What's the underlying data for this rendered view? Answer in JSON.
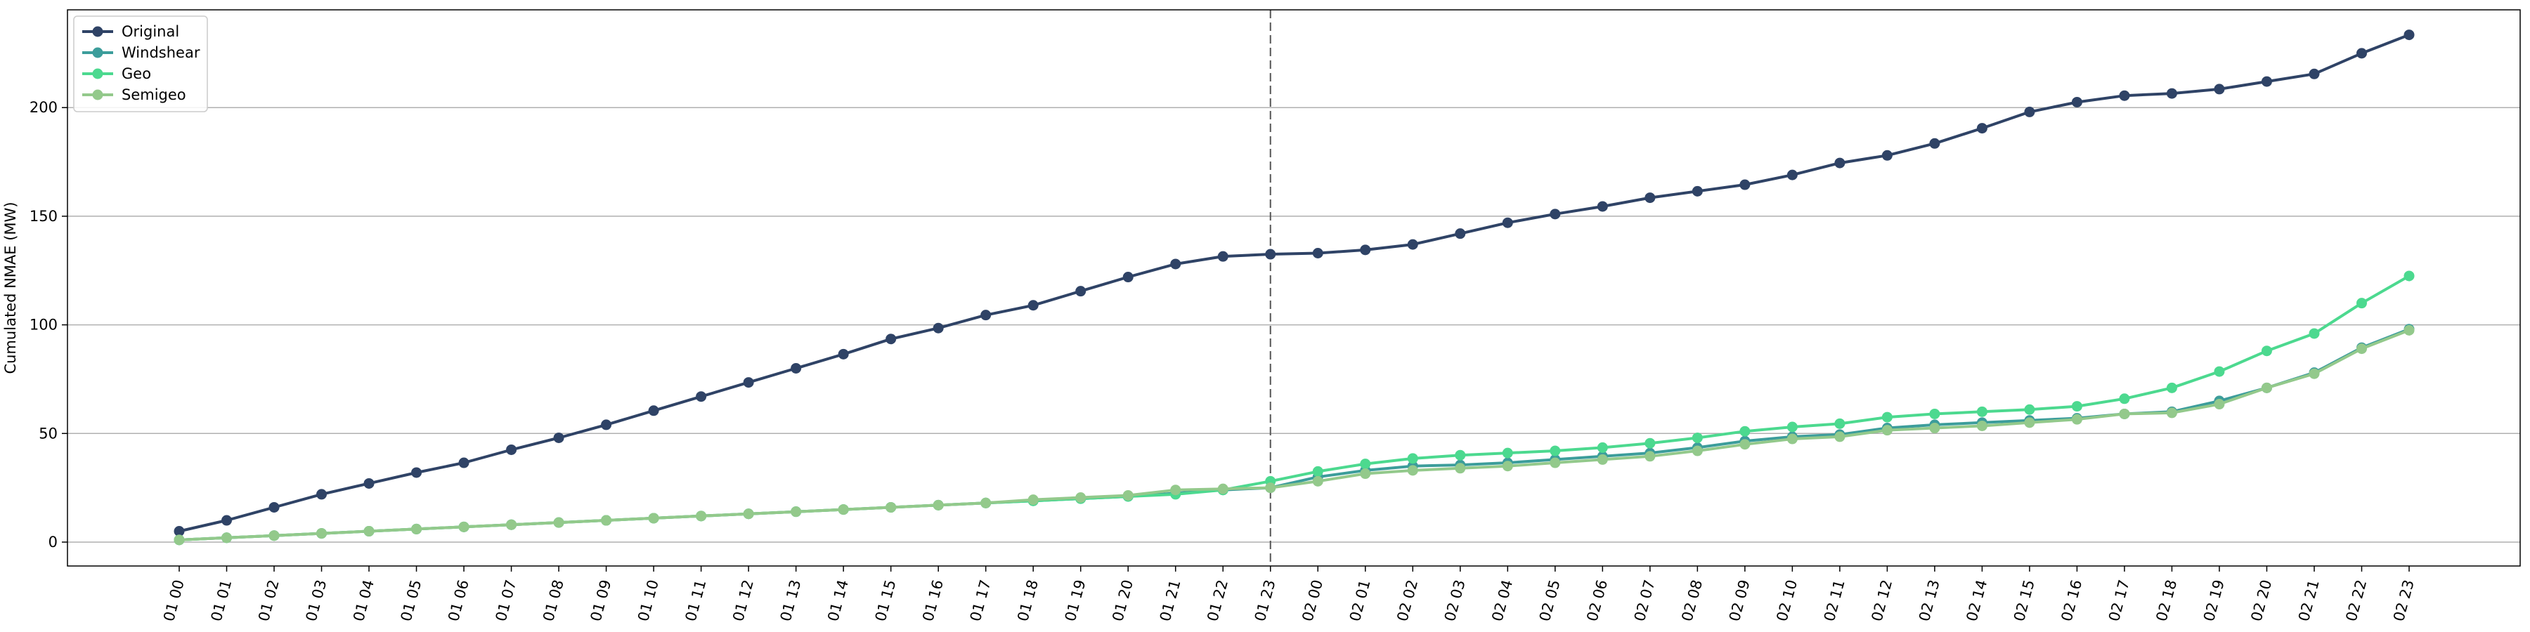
{
  "chart_data": {
    "type": "line",
    "title": "",
    "xlabel": "",
    "ylabel": "Cumulated NMAE (MW)",
    "ylim": [
      -11,
      245
    ],
    "yticks": [
      0,
      50,
      100,
      150,
      200
    ],
    "grid": "horizontal",
    "legend_position": "top-left",
    "vline_category": "01 23",
    "x": [
      "01 00",
      "01 01",
      "01 02",
      "01 03",
      "01 04",
      "01 05",
      "01 06",
      "01 07",
      "01 08",
      "01 09",
      "01 10",
      "01 11",
      "01 12",
      "01 13",
      "01 14",
      "01 15",
      "01 16",
      "01 17",
      "01 18",
      "01 19",
      "01 20",
      "01 21",
      "01 22",
      "01 23",
      "02 00",
      "02 01",
      "02 02",
      "02 03",
      "02 04",
      "02 05",
      "02 06",
      "02 07",
      "02 08",
      "02 09",
      "02 10",
      "02 11",
      "02 12",
      "02 13",
      "02 14",
      "02 15",
      "02 16",
      "02 17",
      "02 18",
      "02 19",
      "02 20",
      "02 21",
      "02 22",
      "02 23"
    ],
    "series": [
      {
        "name": "Original",
        "color": "#2f4366",
        "values": [
          5,
          10,
          16,
          22,
          27,
          32,
          36.5,
          42.5,
          48,
          54,
          60.5,
          67,
          73.5,
          80,
          86.5,
          93.5,
          98.5,
          104.5,
          109,
          115.5,
          122,
          128,
          131.5,
          132.5,
          133,
          134.5,
          137,
          142,
          147,
          151,
          154.5,
          158.5,
          161.5,
          164.5,
          169,
          174.5,
          178,
          183.5,
          190.5,
          198,
          202.5,
          205.5,
          206.5,
          208.5,
          212,
          215.5,
          225,
          233.5
        ]
      },
      {
        "name": "Windshear",
        "color": "#3c9d9b",
        "values": [
          1,
          2,
          3,
          4,
          5,
          6,
          7,
          8,
          9,
          10,
          11,
          12,
          13,
          14,
          15,
          16,
          17,
          18,
          19,
          20,
          21,
          22.5,
          24,
          25,
          30,
          33,
          35,
          35.5,
          36.5,
          38,
          39.5,
          41,
          43.5,
          46.5,
          48.5,
          49.5,
          52.5,
          54,
          55,
          56,
          57,
          59,
          60,
          65,
          71,
          78,
          89.5,
          98
        ]
      },
      {
        "name": "Geo",
        "color": "#4cd98f",
        "values": [
          1,
          2,
          3,
          4,
          5,
          6,
          7,
          8,
          9,
          10,
          11,
          12,
          13,
          14,
          15,
          16,
          17,
          18,
          19,
          20,
          21,
          22,
          24,
          28,
          32.5,
          36,
          38.5,
          40,
          41,
          42,
          43.5,
          45.5,
          48,
          51,
          53,
          54.5,
          57.5,
          59,
          60,
          61,
          62.5,
          66,
          71,
          78.5,
          88,
          96,
          110,
          122.5
        ]
      },
      {
        "name": "Semigeo",
        "color": "#93c98b",
        "values": [
          1,
          2,
          3,
          4,
          5,
          6,
          7,
          8,
          9,
          10,
          11,
          12,
          13,
          14,
          15,
          16,
          17,
          18,
          19.5,
          20.5,
          21.5,
          24,
          24.5,
          25,
          28,
          31.5,
          33,
          34,
          35,
          36.5,
          38,
          39.5,
          42,
          45,
          47.5,
          48.5,
          51.5,
          52.5,
          53.5,
          55,
          56.5,
          59,
          59.5,
          63.5,
          71,
          77.5,
          89,
          97.5
        ]
      }
    ]
  }
}
